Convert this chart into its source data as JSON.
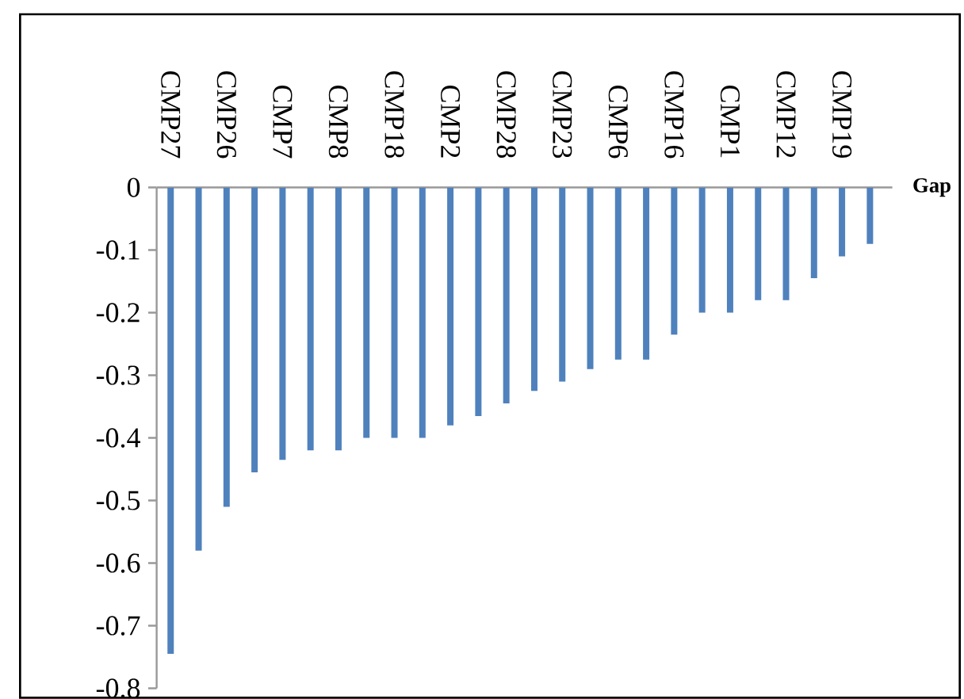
{
  "chart_data": {
    "type": "bar",
    "xlabel": "Gap",
    "categories": [
      "CMP27",
      null,
      "CMP26",
      null,
      "CMP7",
      null,
      "CMP8",
      null,
      "CMP18",
      null,
      "CMP2",
      null,
      "CMP28",
      null,
      "CMP23",
      null,
      "CMP6",
      null,
      "CMP16",
      null,
      "CMP1",
      null,
      "CMP12",
      null,
      "CMP19",
      null
    ],
    "values": [
      -0.745,
      -0.58,
      -0.51,
      -0.455,
      -0.435,
      -0.42,
      -0.42,
      -0.4,
      -0.4,
      -0.4,
      -0.38,
      -0.365,
      -0.345,
      -0.325,
      -0.31,
      -0.29,
      -0.275,
      -0.275,
      -0.235,
      -0.2,
      -0.2,
      -0.18,
      -0.18,
      -0.145,
      -0.11,
      -0.09
    ],
    "color": "#4f81bd",
    "ylim": [
      -0.8,
      0
    ],
    "yticks": [
      0,
      -0.1,
      -0.2,
      -0.3,
      -0.4,
      -0.5,
      -0.6,
      -0.7,
      -0.8
    ]
  }
}
